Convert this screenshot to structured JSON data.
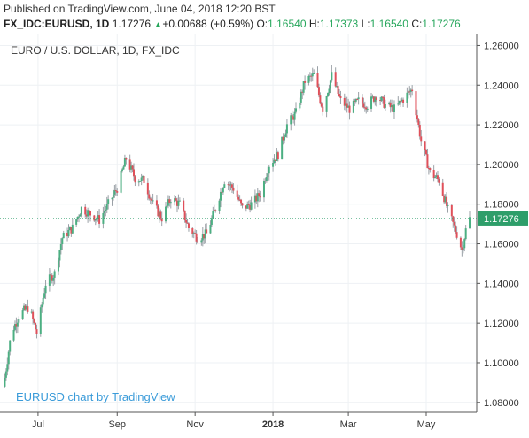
{
  "header": {
    "published": "Published on TradingView.com, June 04, 2018 12:20 BST",
    "symbol": "FX_IDC:EURUSD, 1D",
    "last": "1.17276",
    "change": "+0.00688 (+0.59%)",
    "o_label": "O:",
    "o": "1.16540",
    "h_label": "H:",
    "h": "1.17373",
    "l_label": "L:",
    "l": "1.16540",
    "c_label": "C:",
    "c": "1.17276"
  },
  "colors": {
    "up": "#4caf82",
    "down": "#e0505a",
    "grid": "#eef1f4",
    "last_line": "#2e9e6a",
    "watermark": "#3a9bd9"
  },
  "chart_data": {
    "type": "candlestick",
    "title": "EURO / U.S. DOLLAR, 1D, FX_IDC",
    "watermark": "EURUSD chart by TradingView",
    "x_labels": [
      "Jul",
      "Sep",
      "Nov",
      "2018",
      "Mar",
      "May"
    ],
    "y_ticks": [
      "1.26000",
      "1.24000",
      "1.22000",
      "1.20000",
      "1.18000",
      "1.16000",
      "1.14000",
      "1.12000",
      "1.10000",
      "1.08000"
    ],
    "ylim": [
      1.075,
      1.266
    ],
    "last_price": 1.17276,
    "last_label": "1.17276",
    "grid": true,
    "price_path": [
      [
        "2017-06-04",
        1.088
      ],
      [
        "2017-06-10",
        1.115
      ],
      [
        "2017-06-17",
        1.125
      ],
      [
        "2017-06-24",
        1.128
      ],
      [
        "2017-06-30",
        1.115
      ],
      [
        "2017-07-07",
        1.14
      ],
      [
        "2017-07-14",
        1.145
      ],
      [
        "2017-07-20",
        1.163
      ],
      [
        "2017-07-28",
        1.168
      ],
      [
        "2017-08-04",
        1.178
      ],
      [
        "2017-08-11",
        1.175
      ],
      [
        "2017-08-18",
        1.172
      ],
      [
        "2017-08-25",
        1.18
      ],
      [
        "2017-09-01",
        1.188
      ],
      [
        "2017-09-08",
        1.203
      ],
      [
        "2017-09-15",
        1.193
      ],
      [
        "2017-09-22",
        1.192
      ],
      [
        "2017-09-29",
        1.18
      ],
      [
        "2017-10-06",
        1.173
      ],
      [
        "2017-10-13",
        1.183
      ],
      [
        "2017-10-20",
        1.18
      ],
      [
        "2017-10-27",
        1.168
      ],
      [
        "2017-11-03",
        1.163
      ],
      [
        "2017-11-10",
        1.165
      ],
      [
        "2017-11-17",
        1.178
      ],
      [
        "2017-11-24",
        1.192
      ],
      [
        "2017-12-01",
        1.188
      ],
      [
        "2017-12-08",
        1.178
      ],
      [
        "2017-12-15",
        1.18
      ],
      [
        "2017-12-22",
        1.185
      ],
      [
        "2017-12-29",
        1.2
      ],
      [
        "2018-01-05",
        1.205
      ],
      [
        "2018-01-12",
        1.22
      ],
      [
        "2018-01-19",
        1.226
      ],
      [
        "2018-01-26",
        1.242
      ],
      [
        "2018-02-02",
        1.245
      ],
      [
        "2018-02-09",
        1.228
      ],
      [
        "2018-02-16",
        1.245
      ],
      [
        "2018-02-23",
        1.232
      ],
      [
        "2018-03-02",
        1.228
      ],
      [
        "2018-03-09",
        1.232
      ],
      [
        "2018-03-16",
        1.23
      ],
      [
        "2018-03-23",
        1.235
      ],
      [
        "2018-03-30",
        1.23
      ],
      [
        "2018-04-06",
        1.228
      ],
      [
        "2018-04-13",
        1.233
      ],
      [
        "2018-04-20",
        1.238
      ],
      [
        "2018-04-27",
        1.212
      ],
      [
        "2018-05-04",
        1.196
      ],
      [
        "2018-05-11",
        1.192
      ],
      [
        "2018-05-18",
        1.177
      ],
      [
        "2018-05-25",
        1.165
      ],
      [
        "2018-05-29",
        1.157
      ],
      [
        "2018-06-01",
        1.167
      ],
      [
        "2018-06-04",
        1.17276
      ]
    ]
  }
}
